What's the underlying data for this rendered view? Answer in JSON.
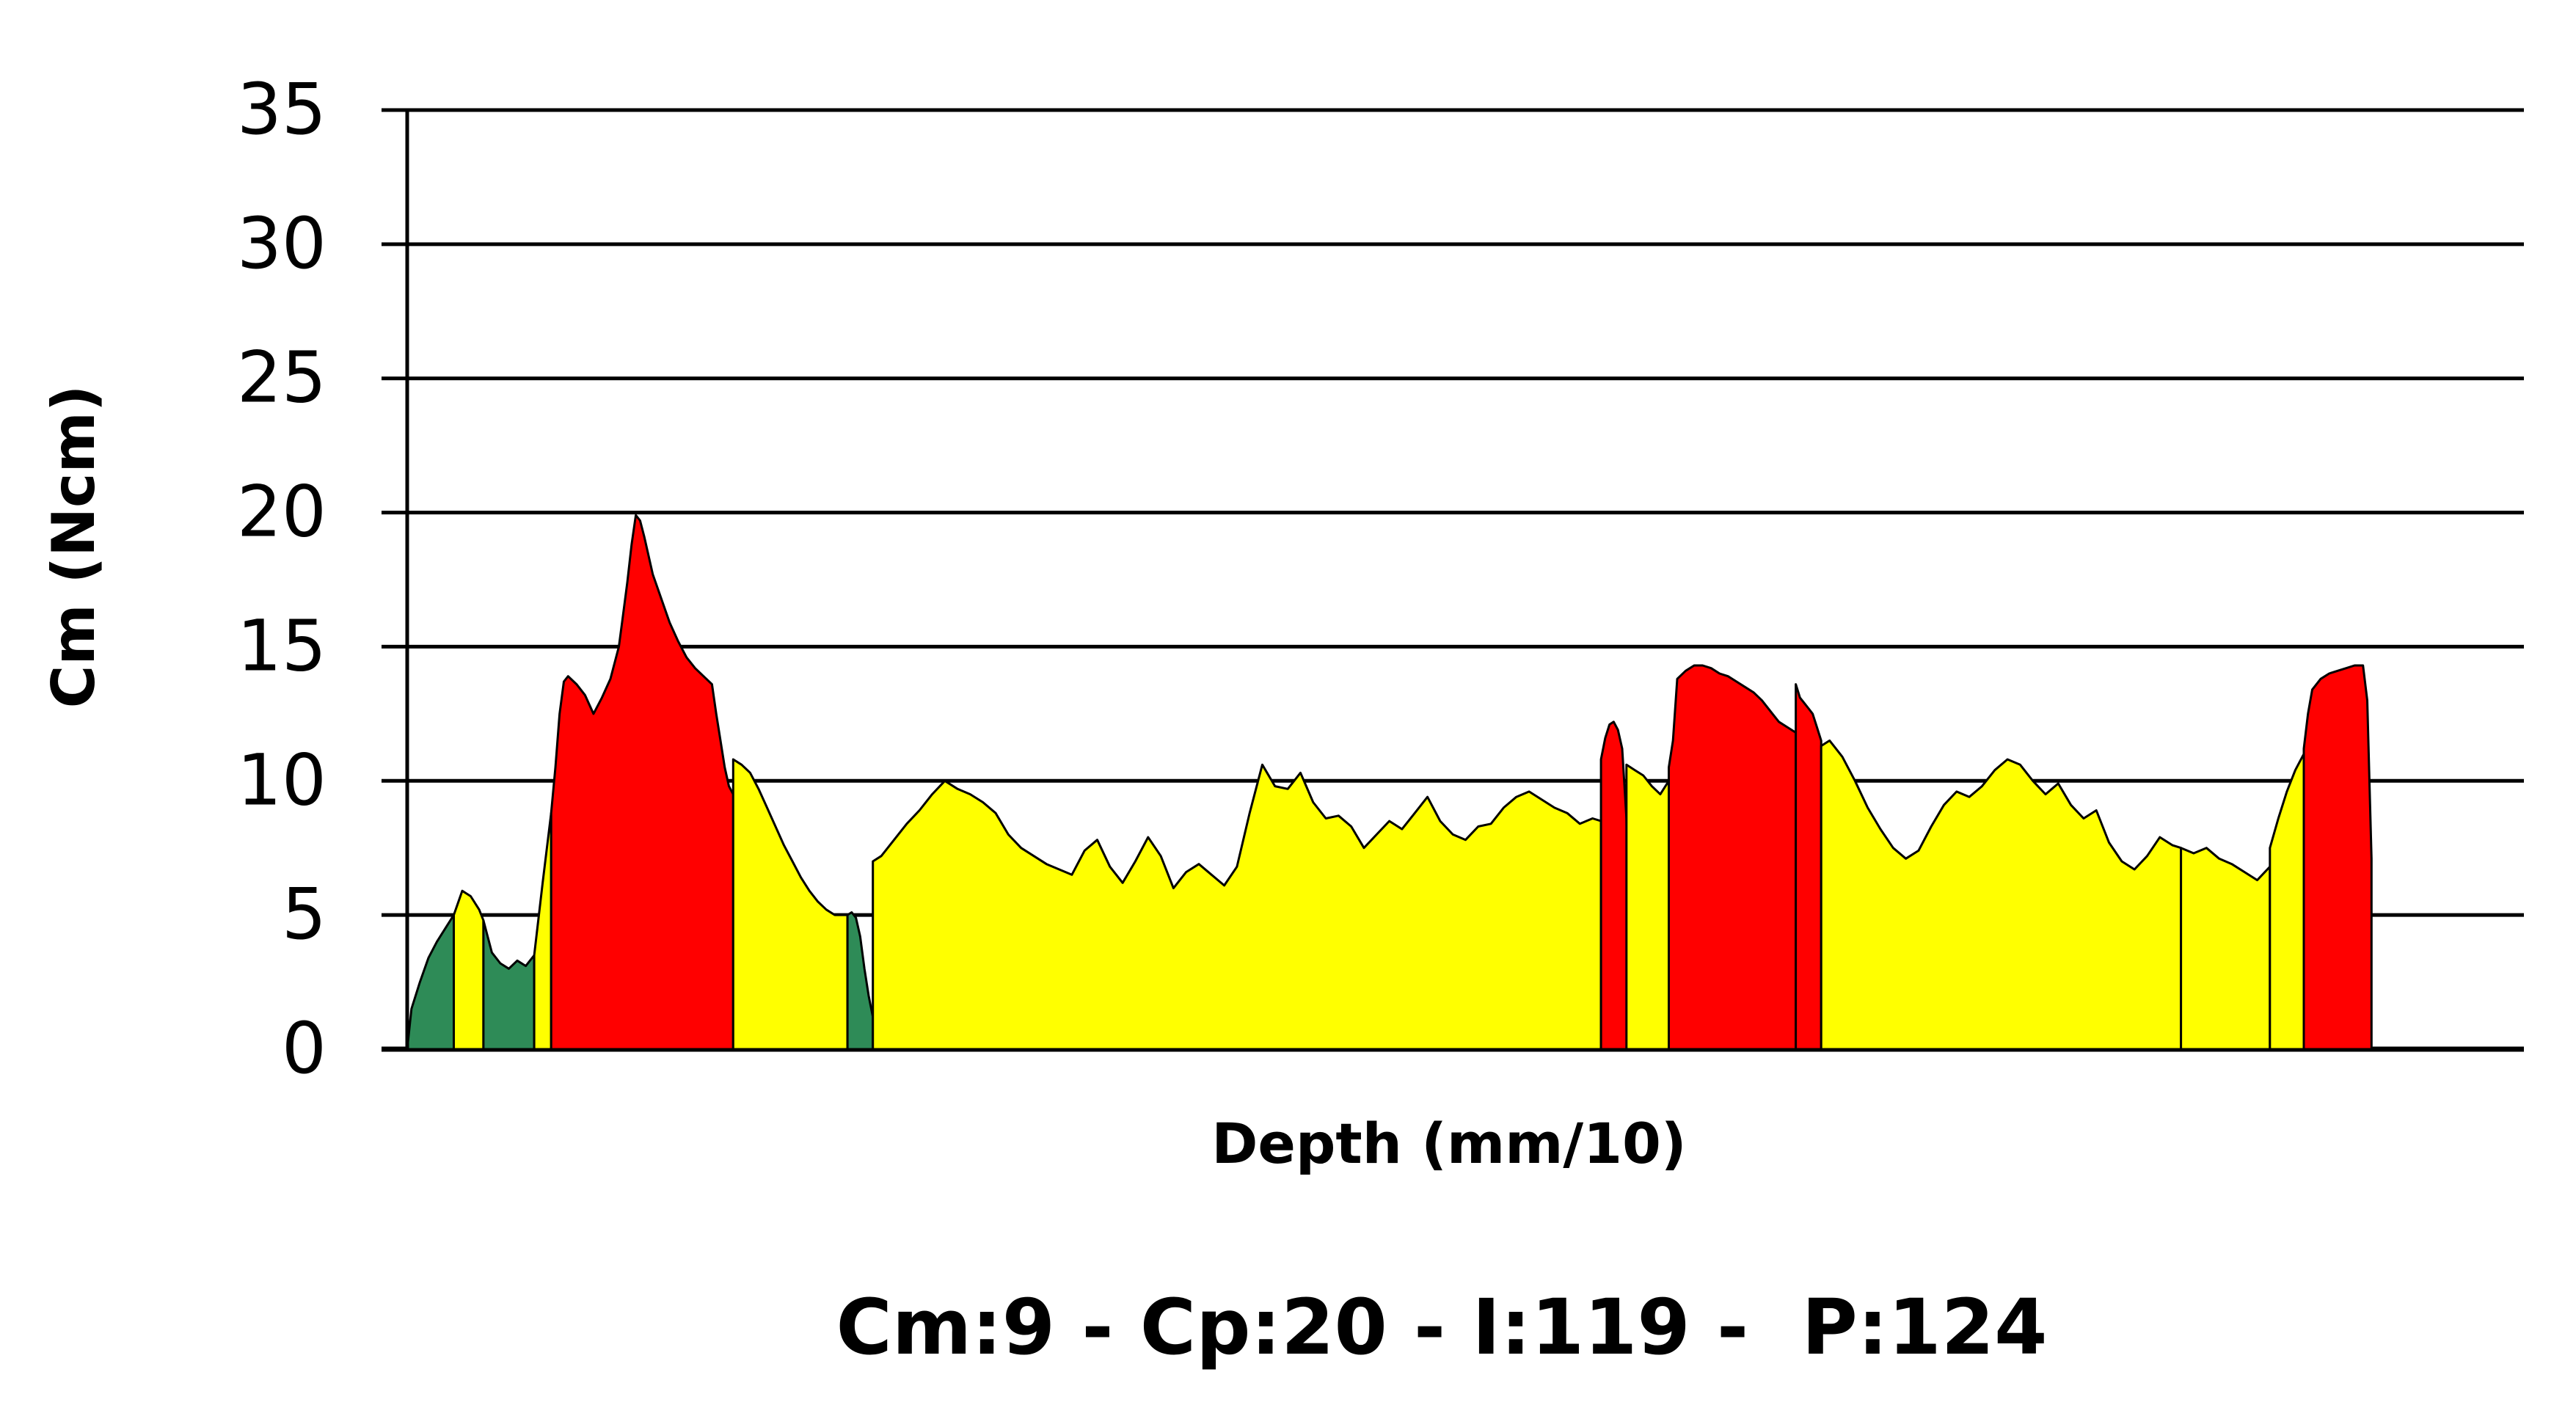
{
  "chart_data": {
    "type": "area",
    "xlabel": "Depth (mm/10)",
    "ylabel": "Cm (Ncm)",
    "summary": "Cm:9 - Cp:20 - I:119 -  P:124",
    "ylim": [
      0,
      35
    ],
    "xlim": [
      0,
      500
    ],
    "yticks": [
      0,
      5,
      10,
      15,
      20,
      25,
      30,
      35
    ],
    "grid": true,
    "colors": {
      "green": "#2e8b57",
      "yellow": "#ffff00",
      "red": "#ff0000",
      "grid": "#000000"
    },
    "series": [
      {
        "color": "green",
        "x": [
          0,
          1,
          3,
          5,
          7,
          9,
          11
        ],
        "y": [
          0,
          1.5,
          2.5,
          3.4,
          4.0,
          4.5,
          5.0
        ]
      },
      {
        "color": "yellow",
        "x": [
          11,
          13,
          15,
          17,
          18
        ],
        "y": [
          5.0,
          5.9,
          5.7,
          5.2,
          4.8
        ]
      },
      {
        "color": "green",
        "x": [
          18,
          20,
          22,
          24,
          26,
          28,
          30
        ],
        "y": [
          4.8,
          3.6,
          3.2,
          3.0,
          3.3,
          3.1,
          3.5
        ]
      },
      {
        "color": "yellow",
        "x": [
          30,
          32,
          34
        ],
        "y": [
          3.5,
          6.2,
          8.8
        ]
      },
      {
        "color": "red",
        "x": [
          34,
          35,
          36,
          37,
          38,
          40,
          42,
          44,
          46,
          48,
          50,
          51,
          52,
          53,
          54,
          55,
          56,
          57,
          58,
          60,
          62,
          64,
          66,
          68,
          70,
          72,
          73,
          74,
          75,
          76,
          77
        ],
        "y": [
          8.8,
          10.5,
          12.5,
          13.7,
          13.9,
          13.6,
          13.2,
          12.5,
          13.1,
          13.8,
          15.0,
          16.2,
          17.4,
          18.8,
          19.9,
          19.7,
          19.1,
          18.4,
          17.7,
          16.8,
          15.9,
          15.2,
          14.6,
          14.2,
          13.9,
          13.6,
          12.5,
          11.5,
          10.5,
          9.8,
          9.5
        ]
      },
      {
        "color": "yellow",
        "x": [
          77,
          79,
          81,
          83,
          85,
          87,
          89,
          91,
          93,
          95,
          97,
          99,
          101,
          103,
          104
        ],
        "y": [
          10.8,
          10.6,
          10.3,
          9.7,
          9.0,
          8.3,
          7.6,
          7.0,
          6.4,
          5.9,
          5.5,
          5.2,
          5.0,
          5.0,
          5.0
        ]
      },
      {
        "color": "green",
        "x": [
          104,
          105,
          106,
          107,
          108,
          109,
          110
        ],
        "y": [
          5.0,
          5.1,
          4.9,
          4.2,
          3.0,
          2.0,
          1.2
        ]
      },
      {
        "color": "yellow",
        "x": [
          110,
          112,
          115,
          118,
          121,
          124,
          127,
          130,
          133,
          136,
          139,
          142,
          145,
          148,
          151,
          154,
          157,
          160,
          163,
          166,
          169,
          172,
          175,
          178,
          181,
          184,
          187,
          190,
          193,
          196,
          199,
          202,
          205,
          208,
          211,
          214,
          217,
          220,
          223,
          226,
          229,
          232,
          235,
          238,
          241,
          244,
          247,
          250,
          253,
          256,
          259,
          262,
          265,
          268,
          271,
          274,
          277,
          280,
          282
        ],
        "y": [
          7.0,
          7.2,
          7.8,
          8.4,
          8.9,
          9.5,
          10.0,
          9.7,
          9.5,
          9.2,
          8.8,
          8.0,
          7.5,
          7.2,
          6.9,
          6.7,
          6.5,
          7.4,
          7.8,
          6.8,
          6.2,
          7.0,
          7.9,
          7.2,
          6.0,
          6.6,
          6.9,
          6.5,
          6.1,
          6.8,
          8.8,
          10.6,
          9.8,
          9.7,
          10.3,
          9.2,
          8.6,
          8.7,
          8.3,
          7.5,
          8.0,
          8.5,
          8.2,
          8.8,
          9.4,
          8.5,
          8.0,
          7.8,
          8.3,
          8.4,
          9.0,
          9.4,
          9.6,
          9.3,
          9.0,
          8.8,
          8.4,
          8.6,
          8.5
        ]
      },
      {
        "color": "red",
        "x": [
          282,
          283,
          284,
          285,
          286,
          287,
          288,
          289,
          290,
          291,
          292,
          293,
          294
        ],
        "y": [
          10.8,
          11.6,
          12.1,
          12.2,
          11.9,
          11.2,
          8.6,
          0,
          0,
          0,
          0,
          0,
          0
        ]
      },
      {
        "color": "yellow",
        "x": [
          288,
          290,
          292,
          294,
          296,
          298
        ],
        "y": [
          10.6,
          10.4,
          10.2,
          9.8,
          9.5,
          10.0
        ]
      },
      {
        "color": "red",
        "x": [
          298,
          299,
          300,
          302,
          304,
          306,
          308,
          310,
          312,
          314,
          316,
          318,
          320,
          322,
          324,
          326,
          328
        ],
        "y": [
          10.5,
          11.5,
          13.8,
          14.1,
          14.3,
          14.3,
          14.2,
          14.0,
          13.9,
          13.7,
          13.5,
          13.3,
          13.0,
          12.6,
          12.2,
          12.0,
          11.8
        ]
      },
      {
        "color": "red",
        "x": [
          328,
          329,
          330,
          331,
          332,
          333,
          334
        ],
        "y": [
          13.6,
          13.1,
          12.9,
          12.7,
          12.5,
          12.0,
          11.5
        ]
      },
      {
        "color": "yellow",
        "x": [
          334,
          336,
          339,
          342,
          345,
          348,
          351,
          354,
          357,
          360,
          363,
          366,
          369,
          372,
          375,
          378,
          381,
          384,
          387,
          390,
          393,
          396,
          399,
          402,
          405,
          408,
          411,
          414,
          417,
          419
        ],
        "y": [
          11.3,
          11.5,
          10.9,
          10.0,
          9.0,
          8.2,
          7.5,
          7.1,
          7.4,
          8.3,
          9.1,
          9.6,
          9.4,
          9.8,
          10.4,
          10.8,
          10.6,
          10.0,
          9.5,
          9.9,
          9.1,
          8.6,
          8.9,
          7.7,
          7.0,
          6.7,
          7.2,
          7.9,
          7.6,
          7.5
        ]
      },
      {
        "color": "yellow",
        "x": [
          419,
          422,
          425,
          428,
          431,
          434,
          437,
          440
        ],
        "y": [
          7.5,
          7.3,
          7.5,
          7.1,
          6.9,
          6.6,
          6.3,
          6.8
        ]
      },
      {
        "color": "yellow",
        "x": [
          440,
          442,
          444,
          446,
          448
        ],
        "y": [
          7.5,
          8.6,
          9.6,
          10.4,
          11.0
        ]
      },
      {
        "color": "red",
        "x": [
          448,
          449,
          450,
          452,
          454,
          456,
          458,
          460,
          461,
          462,
          463,
          464
        ],
        "y": [
          11.2,
          12.5,
          13.4,
          13.8,
          14.0,
          14.1,
          14.2,
          14.3,
          14.3,
          14.3,
          13.0,
          7.1
        ]
      }
    ]
  }
}
